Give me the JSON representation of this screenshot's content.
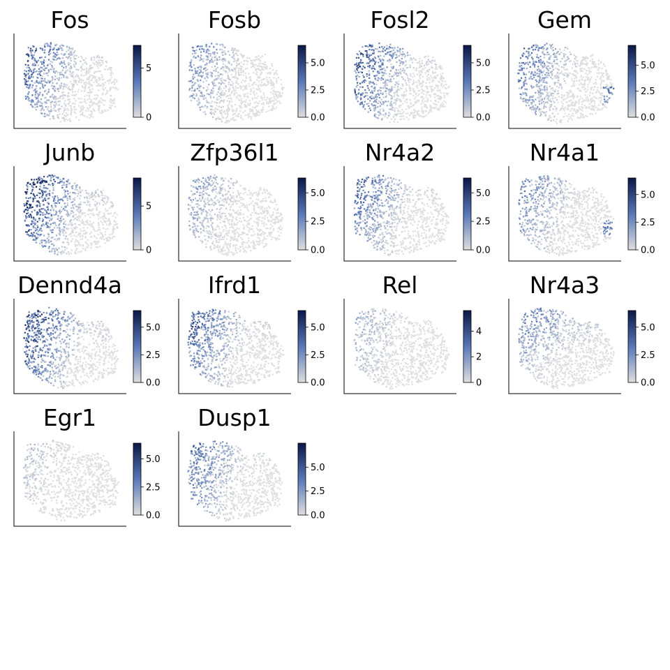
{
  "colors": {
    "low": "#dedede",
    "high": "#0b1747",
    "axis": "#000000",
    "background": "#ffffff"
  },
  "chart_data": [
    {
      "type": "scatter",
      "title": "Fos",
      "colorbar_ticks": [
        "0",
        "5"
      ],
      "colorbar_tick_values": [
        0,
        5
      ],
      "colorbar_range": [
        0,
        7.3
      ]
    },
    {
      "type": "scatter",
      "title": "Fosb",
      "colorbar_ticks": [
        "0.0",
        "2.5",
        "5.0"
      ],
      "colorbar_tick_values": [
        0,
        2.5,
        5
      ],
      "colorbar_range": [
        0,
        6.6
      ]
    },
    {
      "type": "scatter",
      "title": "Fosl2",
      "colorbar_ticks": [
        "0.0",
        "2.5",
        "5.0"
      ],
      "colorbar_tick_values": [
        0,
        2.5,
        5
      ],
      "colorbar_range": [
        0,
        6.6
      ]
    },
    {
      "type": "scatter",
      "title": "Gem",
      "colorbar_ticks": [
        "0.0",
        "2.5",
        "5.0"
      ],
      "colorbar_tick_values": [
        0,
        2.5,
        5
      ],
      "colorbar_range": [
        0,
        6.9
      ]
    },
    {
      "type": "scatter",
      "title": "Junb",
      "colorbar_ticks": [
        "0",
        "5"
      ],
      "colorbar_tick_values": [
        0,
        5
      ],
      "colorbar_range": [
        0,
        8.2
      ]
    },
    {
      "type": "scatter",
      "title": "Zfp36l1",
      "colorbar_ticks": [
        "0.0",
        "2.5",
        "5.0"
      ],
      "colorbar_tick_values": [
        0,
        2.5,
        5
      ],
      "colorbar_range": [
        0,
        6.3
      ]
    },
    {
      "type": "scatter",
      "title": "Nr4a2",
      "colorbar_ticks": [
        "0.0",
        "2.5",
        "5.0"
      ],
      "colorbar_tick_values": [
        0,
        2.5,
        5
      ],
      "colorbar_range": [
        0,
        6.3
      ]
    },
    {
      "type": "scatter",
      "title": "Nr4a1",
      "colorbar_ticks": [
        "0.0",
        "2.5",
        "5.0"
      ],
      "colorbar_tick_values": [
        0,
        2.5,
        5
      ],
      "colorbar_range": [
        0,
        6.5
      ]
    },
    {
      "type": "scatter",
      "title": "Dennd4a",
      "colorbar_ticks": [
        "0.0",
        "2.5",
        "5.0"
      ],
      "colorbar_tick_values": [
        0,
        2.5,
        5
      ],
      "colorbar_range": [
        0,
        6.5
      ]
    },
    {
      "type": "scatter",
      "title": "Ifrd1",
      "colorbar_ticks": [
        "0.0",
        "2.5",
        "5.0"
      ],
      "colorbar_tick_values": [
        0,
        2.5,
        5
      ],
      "colorbar_range": [
        0,
        6.5
      ]
    },
    {
      "type": "scatter",
      "title": "Rel",
      "colorbar_ticks": [
        "0",
        "2",
        "4"
      ],
      "colorbar_tick_values": [
        0,
        2,
        4
      ],
      "colorbar_range": [
        0,
        5.6
      ]
    },
    {
      "type": "scatter",
      "title": "Nr4a3",
      "colorbar_ticks": [
        "0.0",
        "2.5",
        "5.0"
      ],
      "colorbar_tick_values": [
        0,
        2.5,
        5
      ],
      "colorbar_range": [
        0,
        6.5
      ]
    },
    {
      "type": "scatter",
      "title": "Egr1",
      "colorbar_ticks": [
        "0.0",
        "2.5",
        "5.0"
      ],
      "colorbar_tick_values": [
        0,
        2.5,
        5
      ],
      "colorbar_range": [
        0,
        6.4
      ]
    },
    {
      "type": "scatter",
      "title": "Dusp1",
      "colorbar_ticks": [
        "0.0",
        "2.5",
        "5.0"
      ],
      "colorbar_tick_values": [
        0,
        2.5,
        5
      ],
      "colorbar_range": [
        0,
        7.5
      ]
    }
  ]
}
